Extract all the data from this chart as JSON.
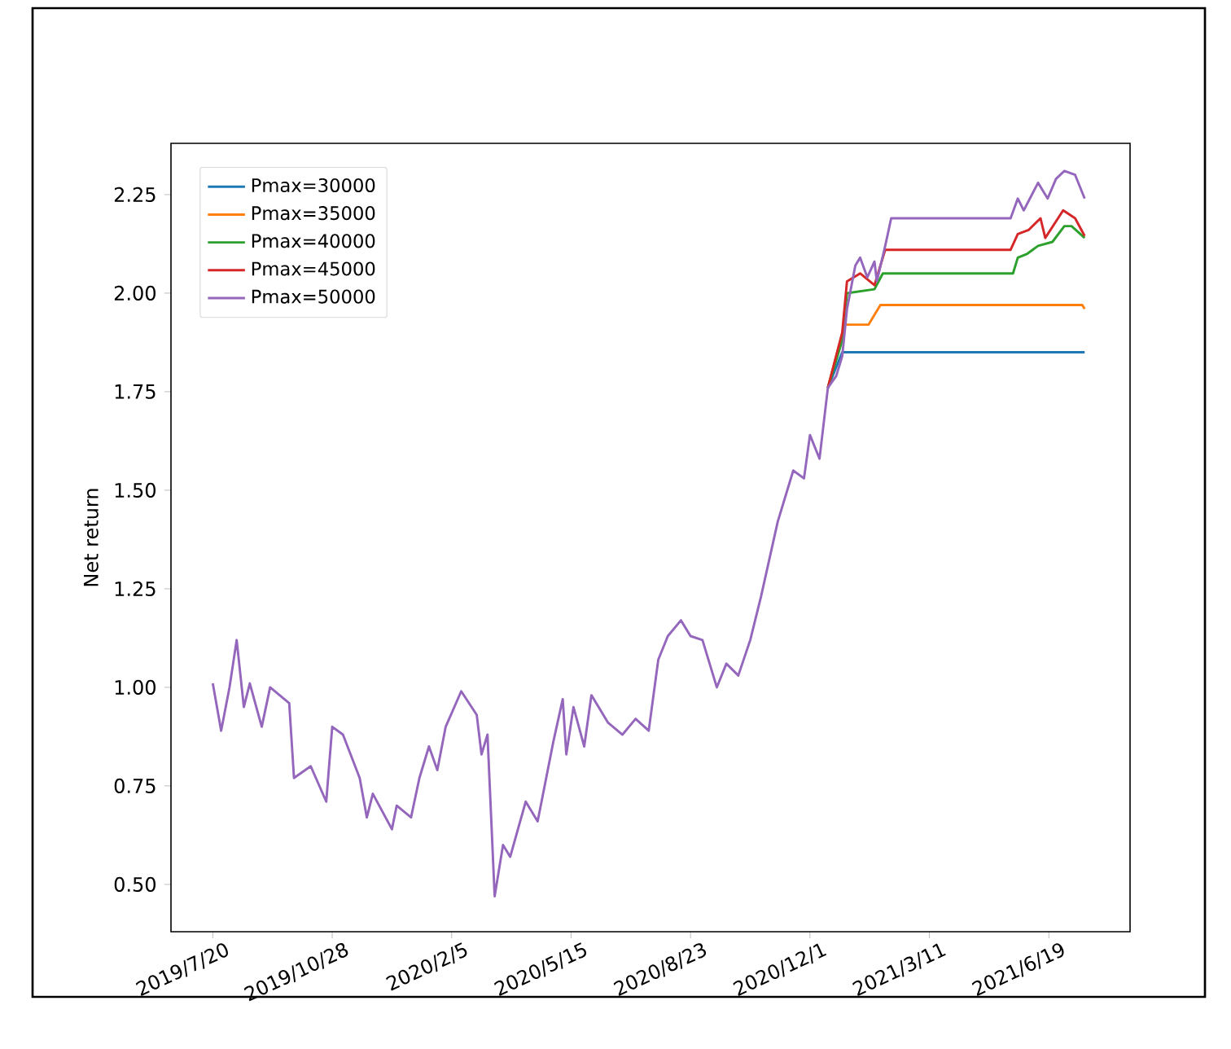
{
  "chart_data": {
    "type": "line",
    "ylabel": "Net return",
    "legend": "top left",
    "xlim": [
      "2019-06-15",
      "2021-08-26"
    ],
    "ylim": [
      0.38,
      2.38
    ],
    "xticks": [
      {
        "value": "2019-07-20",
        "label": "2019/7/20"
      },
      {
        "value": "2019-10-28",
        "label": "2019/10/28"
      },
      {
        "value": "2020-02-05",
        "label": "2020/2/5"
      },
      {
        "value": "2020-05-15",
        "label": "2020/5/15"
      },
      {
        "value": "2020-08-23",
        "label": "2020/8/23"
      },
      {
        "value": "2020-12-01",
        "label": "2020/12/1"
      },
      {
        "value": "2021-03-11",
        "label": "2021/3/11"
      },
      {
        "value": "2021-06-19",
        "label": "2021/6/19"
      }
    ],
    "yticks": [
      {
        "value": 0.5,
        "label": "0.50"
      },
      {
        "value": 0.75,
        "label": "0.75"
      },
      {
        "value": 1.0,
        "label": "1.00"
      },
      {
        "value": 1.25,
        "label": "1.25"
      },
      {
        "value": 1.5,
        "label": "1.50"
      },
      {
        "value": 1.75,
        "label": "1.75"
      },
      {
        "value": 2.0,
        "label": "2.00"
      },
      {
        "value": 2.25,
        "label": "2.25"
      }
    ],
    "series": [
      {
        "name": "Pmax=30000",
        "color": "#1f77b4",
        "x": [
          "2020-12-16",
          "2020-12-28",
          "2021-07-19"
        ],
        "values": [
          1.76,
          1.85,
          1.85
        ]
      },
      {
        "name": "Pmax=35000",
        "color": "#ff7f0e",
        "x": [
          "2020-12-16",
          "2020-12-30",
          "2021-01-19",
          "2021-01-23",
          "2021-01-29",
          "2021-07-17",
          "2021-07-19"
        ],
        "values": [
          1.76,
          1.92,
          1.92,
          1.94,
          1.97,
          1.97,
          1.96
        ]
      },
      {
        "name": "Pmax=40000",
        "color": "#2ca02c",
        "x": [
          "2020-12-16",
          "2020-12-28",
          "2021-01-01",
          "2021-01-24",
          "2021-01-31",
          "2021-05-20",
          "2021-05-24",
          "2021-06-01",
          "2021-06-10",
          "2021-06-22",
          "2021-07-02",
          "2021-07-08",
          "2021-07-19"
        ],
        "values": [
          1.76,
          1.88,
          2.0,
          2.01,
          2.05,
          2.05,
          2.09,
          2.1,
          2.12,
          2.13,
          2.17,
          2.17,
          2.14
        ]
      },
      {
        "name": "Pmax=45000",
        "color": "#d62728",
        "x": [
          "2020-12-16",
          "2020-12-28",
          "2021-01-01",
          "2021-01-12",
          "2021-01-24",
          "2021-02-02",
          "2021-05-18",
          "2021-05-24",
          "2021-06-02",
          "2021-06-12",
          "2021-06-16",
          "2021-07-01",
          "2021-07-11",
          "2021-07-19"
        ],
        "values": [
          1.76,
          1.9,
          2.03,
          2.05,
          2.02,
          2.11,
          2.11,
          2.15,
          2.16,
          2.19,
          2.14,
          2.21,
          2.19,
          2.145
        ]
      },
      {
        "name": "Pmax=50000",
        "color": "#9467bd",
        "x": [
          "2019-07-20",
          "2019-07-27",
          "2019-08-03",
          "2019-08-09",
          "2019-08-15",
          "2019-08-20",
          "2019-08-30",
          "2019-09-06",
          "2019-09-22",
          "2019-09-26",
          "2019-10-10",
          "2019-10-23",
          "2019-10-28",
          "2019-11-06",
          "2019-11-20",
          "2019-11-26",
          "2019-12-01",
          "2019-12-17",
          "2019-12-21",
          "2020-01-02",
          "2020-01-09",
          "2020-01-17",
          "2020-01-24",
          "2020-01-31",
          "2020-02-13",
          "2020-02-26",
          "2020-03-01",
          "2020-03-06",
          "2020-03-12",
          "2020-03-19",
          "2020-03-25",
          "2020-04-07",
          "2020-04-17",
          "2020-04-30",
          "2020-05-08",
          "2020-05-11",
          "2020-05-17",
          "2020-05-26",
          "2020-06-01",
          "2020-06-15",
          "2020-06-27",
          "2020-07-08",
          "2020-07-19",
          "2020-07-27",
          "2020-08-04",
          "2020-08-15",
          "2020-08-23",
          "2020-09-02",
          "2020-09-14",
          "2020-09-22",
          "2020-10-02",
          "2020-10-12",
          "2020-10-21",
          "2020-11-04",
          "2020-11-17",
          "2020-11-26",
          "2020-12-01",
          "2020-12-09",
          "2020-12-16",
          "2020-12-23",
          "2020-12-28",
          "2021-01-01",
          "2021-01-08",
          "2021-01-12",
          "2021-01-18",
          "2021-01-24",
          "2021-01-26",
          "2021-02-02",
          "2021-02-07",
          "2021-05-18",
          "2021-05-24",
          "2021-05-29",
          "2021-06-10",
          "2021-06-18",
          "2021-06-25",
          "2021-07-02",
          "2021-07-11",
          "2021-07-19"
        ],
        "values": [
          1.01,
          0.89,
          1.0,
          1.12,
          0.95,
          1.01,
          0.9,
          1.0,
          0.96,
          0.77,
          0.8,
          0.71,
          0.9,
          0.88,
          0.77,
          0.67,
          0.73,
          0.64,
          0.7,
          0.67,
          0.77,
          0.85,
          0.79,
          0.9,
          0.99,
          0.93,
          0.83,
          0.88,
          0.47,
          0.6,
          0.57,
          0.71,
          0.66,
          0.86,
          0.97,
          0.83,
          0.95,
          0.85,
          0.98,
          0.91,
          0.88,
          0.92,
          0.89,
          1.07,
          1.13,
          1.17,
          1.13,
          1.12,
          1.0,
          1.06,
          1.03,
          1.12,
          1.23,
          1.42,
          1.55,
          1.53,
          1.64,
          1.58,
          1.76,
          1.79,
          1.84,
          1.96,
          2.07,
          2.09,
          2.04,
          2.08,
          2.03,
          2.12,
          2.19,
          2.19,
          2.24,
          2.21,
          2.28,
          2.24,
          2.29,
          2.31,
          2.3,
          2.24
        ]
      }
    ]
  }
}
